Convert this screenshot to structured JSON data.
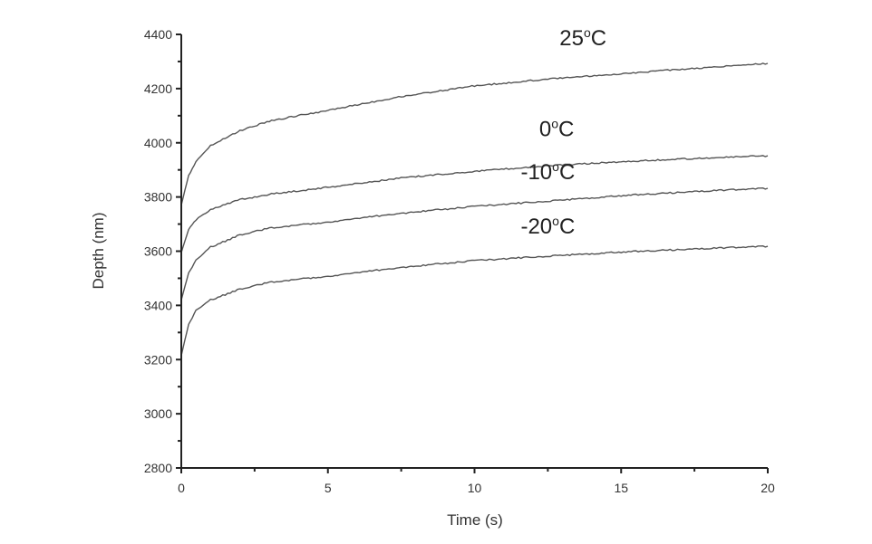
{
  "chart_data": {
    "type": "line",
    "title": "",
    "xlabel": "Time (s)",
    "ylabel": "Depth (nm)",
    "xlim": [
      0,
      20
    ],
    "ylim": [
      2800,
      4400
    ],
    "x_ticks": [
      "0",
      "5",
      "10",
      "15",
      "20"
    ],
    "y_ticks": [
      "2800",
      "3000",
      "3200",
      "3400",
      "3600",
      "3800",
      "4000",
      "4200",
      "4400"
    ],
    "grid": false,
    "legend": "inline labels above curves",
    "x": [
      0,
      0.25,
      0.5,
      1,
      2,
      3,
      5,
      7.5,
      10,
      12.5,
      15,
      17.5,
      20
    ],
    "series": [
      {
        "name": "25°C",
        "values": [
          3770,
          3880,
          3930,
          3990,
          4045,
          4080,
          4120,
          4170,
          4210,
          4235,
          4255,
          4275,
          4293
        ]
      },
      {
        "name": "0°C",
        "values": [
          3595,
          3680,
          3715,
          3755,
          3790,
          3810,
          3836,
          3870,
          3895,
          3915,
          3930,
          3942,
          3952
        ]
      },
      {
        "name": "-10°C",
        "values": [
          3420,
          3520,
          3565,
          3615,
          3660,
          3685,
          3708,
          3740,
          3765,
          3785,
          3805,
          3820,
          3832
        ]
      },
      {
        "name": "-20°C",
        "values": [
          3215,
          3330,
          3380,
          3420,
          3460,
          3485,
          3508,
          3540,
          3565,
          3582,
          3597,
          3608,
          3618
        ]
      }
    ],
    "labels": [
      {
        "text": "25°C",
        "x": 13.7,
        "y": 4360
      },
      {
        "text": "0°C",
        "x": 12.8,
        "y": 4025
      },
      {
        "text": "-10°C",
        "x": 12.5,
        "y": 3865
      },
      {
        "text": "-20°C",
        "x": 12.5,
        "y": 3665
      }
    ],
    "line_color": "#555555"
  }
}
